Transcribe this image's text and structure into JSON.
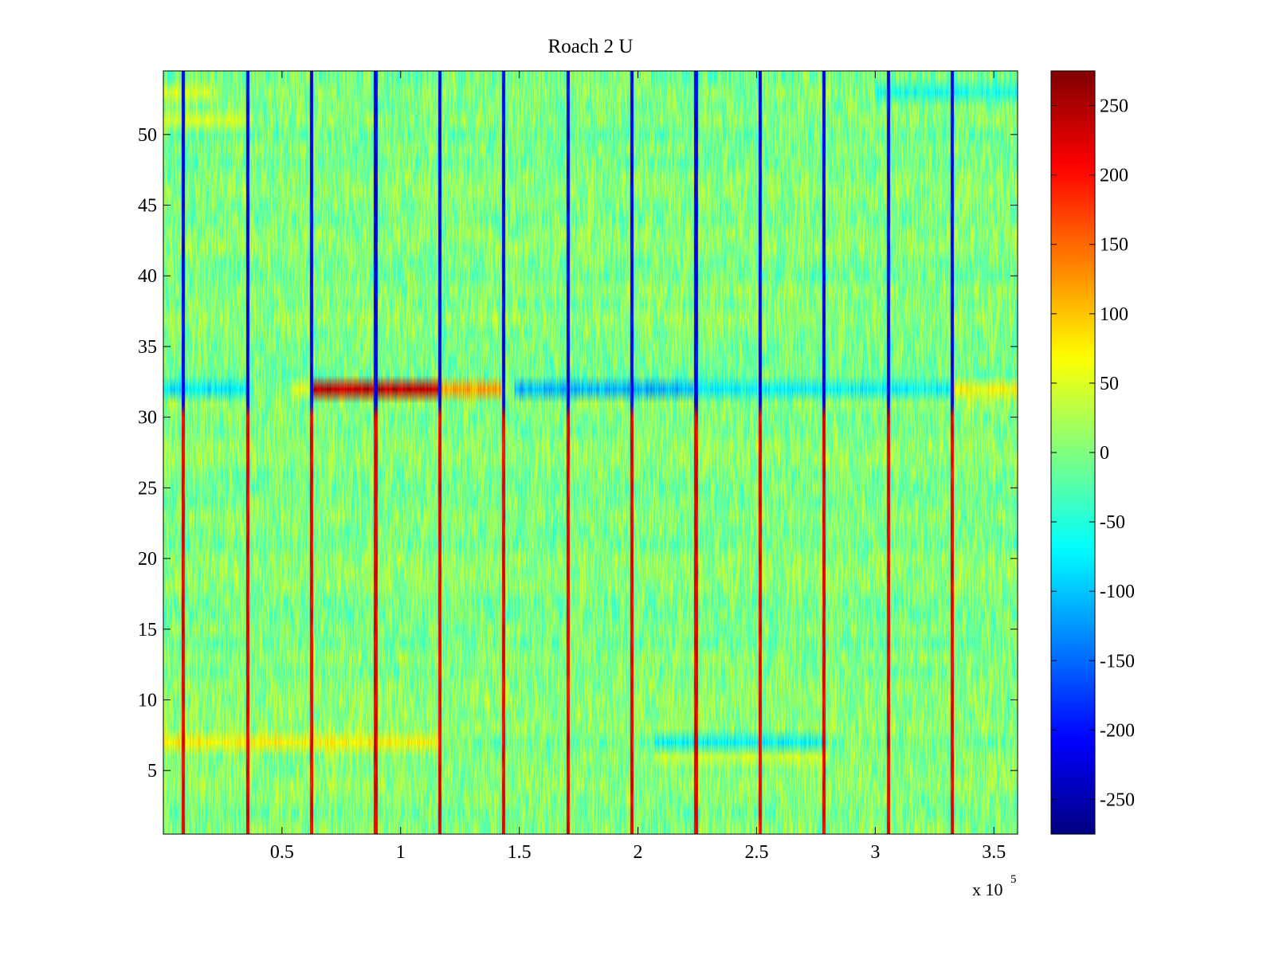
{
  "chart_data": {
    "type": "heatmap",
    "title": "Roach 2 U",
    "xlabel": "",
    "ylabel": "",
    "x_range": [
      0,
      360000
    ],
    "y_range": [
      0.5,
      54.5
    ],
    "x_ticks": [
      50000,
      100000,
      150000,
      200000,
      250000,
      300000,
      350000
    ],
    "x_tick_labels": [
      "0.5",
      "1",
      "1.5",
      "2",
      "2.5",
      "3",
      "3.5"
    ],
    "x_multiplier_base": "x 10",
    "x_multiplier_exponent": "5",
    "y_ticks": [
      5,
      10,
      15,
      20,
      25,
      30,
      35,
      40,
      45,
      50
    ],
    "y_tick_labels": [
      "5",
      "10",
      "15",
      "20",
      "25",
      "30",
      "35",
      "40",
      "45",
      "50"
    ],
    "colormap": "jet",
    "color_range": [
      -275,
      275
    ],
    "colorbar_ticks": [
      250,
      200,
      150,
      100,
      50,
      0,
      -50,
      -100,
      -150,
      -200,
      -250
    ],
    "colorbar_tick_labels": [
      "250",
      "200",
      "150",
      "100",
      "50",
      "0",
      "-50",
      "-100",
      "-150",
      "-200",
      "-250"
    ],
    "num_rows": 54,
    "background_level": 0,
    "noise_amplitude": 30,
    "periodic_spikes": {
      "x_positions": [
        8500,
        35500,
        62500,
        89500,
        116500,
        143500,
        170500,
        197500,
        224500,
        251500,
        278500,
        305500,
        332500
      ],
      "upper_rows_value": -250,
      "lower_rows_value": 250,
      "split_row": 30
    },
    "row_features": [
      {
        "row": 32,
        "x_start": 0,
        "x_end": 36000,
        "value": -80
      },
      {
        "row": 32,
        "x_start": 54000,
        "x_end": 63000,
        "value": 60
      },
      {
        "row": 32,
        "x_start": 63000,
        "x_end": 117000,
        "value": 240
      },
      {
        "row": 32,
        "x_start": 117000,
        "x_end": 144000,
        "value": 120
      },
      {
        "row": 32,
        "x_start": 148000,
        "x_end": 225000,
        "value": -110
      },
      {
        "row": 32,
        "x_start": 225000,
        "x_end": 332000,
        "value": -70
      },
      {
        "row": 32,
        "x_start": 332000,
        "x_end": 360000,
        "value": 70
      },
      {
        "row": 7,
        "x_start": 0,
        "x_end": 117000,
        "value": 70
      },
      {
        "row": 7,
        "x_start": 207000,
        "x_end": 280000,
        "value": -70
      },
      {
        "row": 6,
        "x_start": 207000,
        "x_end": 280000,
        "value": 40
      },
      {
        "row": 51,
        "x_start": 0,
        "x_end": 36000,
        "value": 50
      },
      {
        "row": 53,
        "x_start": 0,
        "x_end": 20000,
        "value": 50
      },
      {
        "row": 53,
        "x_start": 300000,
        "x_end": 360000,
        "value": -60
      }
    ],
    "colors": {
      "background": "#ffffff",
      "axis": "#000000"
    }
  }
}
